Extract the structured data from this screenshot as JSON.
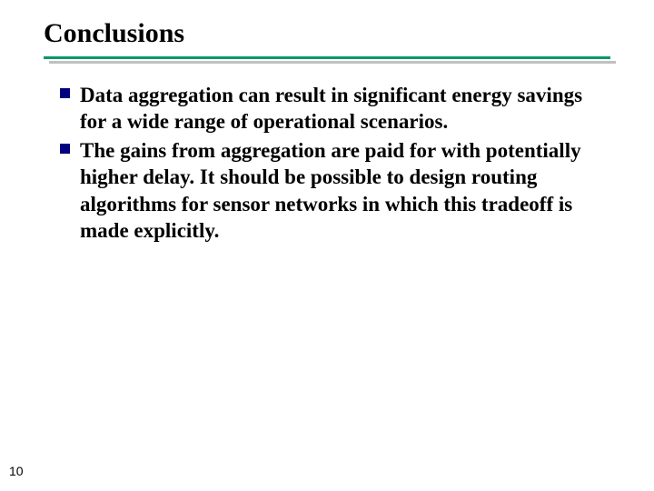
{
  "slide": {
    "title": "Conclusions",
    "title_fontsize": 30,
    "title_color": "#000000",
    "rule_color": "#009966",
    "rule_shadow_color": "#c0c0c0",
    "bullet_marker_color": "#000080",
    "bullet_marker_size": 11,
    "body_fontsize": 23,
    "body_color": "#000000",
    "bullets": [
      "Data aggregation can result in significant energy savings for a wide range of operational scenarios.",
      "The gains from aggregation are paid for with potentially higher delay. It should be possible to design routing algorithms for sensor networks in which this tradeoff is made explicitly."
    ],
    "page_number": "10",
    "page_number_fontsize": 14,
    "background_color": "#ffffff"
  }
}
